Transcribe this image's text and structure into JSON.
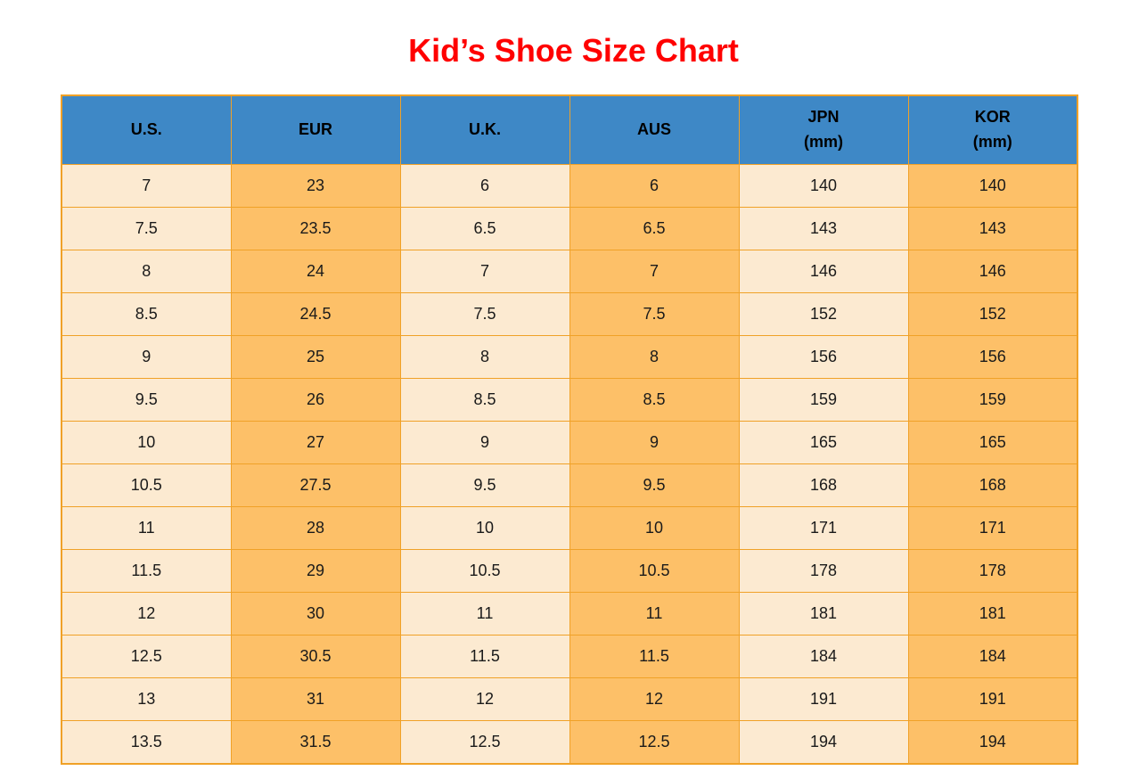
{
  "title": "Kid’s Shoe Size Chart",
  "colors": {
    "title_text": "#ff0000",
    "header_bg": "#3e88c6",
    "header_text": "#000000",
    "cell_light_bg": "#fcead1",
    "cell_orange_bg": "#fdc068",
    "border": "#f0a127",
    "cell_text": "#1a1a1a",
    "page_bg": "#ffffff"
  },
  "chart_data": {
    "type": "table",
    "title": "Kid’s Shoe Size Chart",
    "columns": [
      {
        "label": "U.S.",
        "sub": ""
      },
      {
        "label": "EUR",
        "sub": ""
      },
      {
        "label": "U.K.",
        "sub": ""
      },
      {
        "label": "AUS",
        "sub": ""
      },
      {
        "label": "JPN",
        "sub": "(mm)"
      },
      {
        "label": "KOR",
        "sub": "(mm)"
      }
    ],
    "rows": [
      [
        "7",
        "23",
        "6",
        "6",
        "140",
        "140"
      ],
      [
        "7.5",
        "23.5",
        "6.5",
        "6.5",
        "143",
        "143"
      ],
      [
        "8",
        "24",
        "7",
        "7",
        "146",
        "146"
      ],
      [
        "8.5",
        "24.5",
        "7.5",
        "7.5",
        "152",
        "152"
      ],
      [
        "9",
        "25",
        "8",
        "8",
        "156",
        "156"
      ],
      [
        "9.5",
        "26",
        "8.5",
        "8.5",
        "159",
        "159"
      ],
      [
        "10",
        "27",
        "9",
        "9",
        "165",
        "165"
      ],
      [
        "10.5",
        "27.5",
        "9.5",
        "9.5",
        "168",
        "168"
      ],
      [
        "11",
        "28",
        "10",
        "10",
        "171",
        "171"
      ],
      [
        "11.5",
        "29",
        "10.5",
        "10.5",
        "178",
        "178"
      ],
      [
        "12",
        "30",
        "11",
        "11",
        "181",
        "181"
      ],
      [
        "12.5",
        "30.5",
        "11.5",
        "11.5",
        "184",
        "184"
      ],
      [
        "13",
        "31",
        "12",
        "12",
        "191",
        "191"
      ],
      [
        "13.5",
        "31.5",
        "12.5",
        "12.5",
        "194",
        "194"
      ]
    ],
    "layout": {
      "column_fill_pattern": [
        "light",
        "orange",
        "light",
        "orange",
        "light",
        "orange"
      ]
    }
  }
}
